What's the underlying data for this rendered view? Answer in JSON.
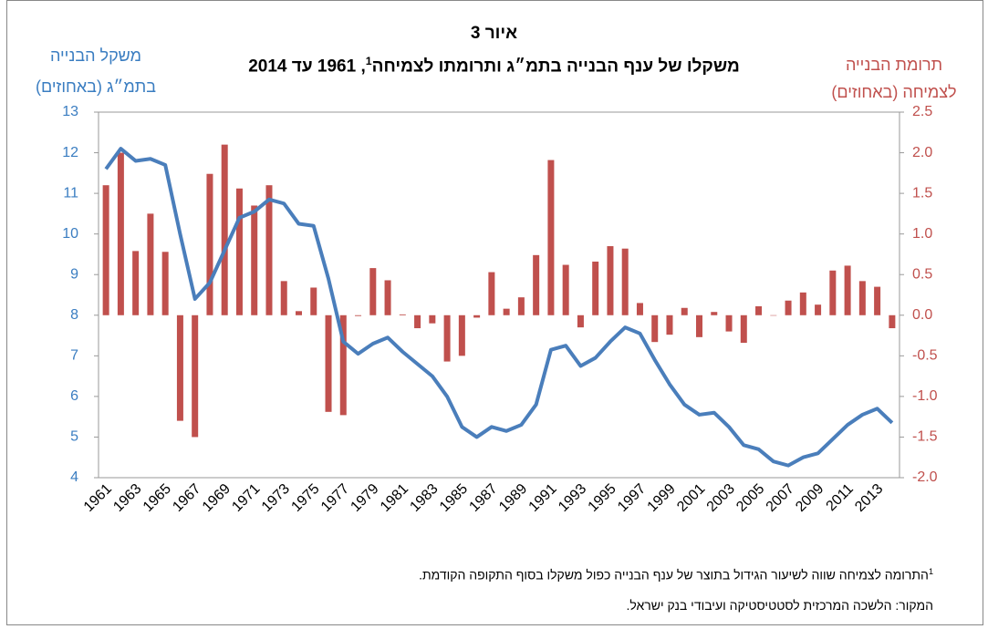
{
  "chart_data": {
    "type": "combo",
    "title_line1": "איור 3",
    "title": [
      "משקלו של ענף הבנייה בתמ״ג ותרומתו לצמיחה",
      "1",
      ", 1961 עד 2014"
    ],
    "ylabel": [
      "משקל הבנייה",
      "בתמ״ג (באחוזים)"
    ],
    "y2label": [
      "תרומת הבנייה",
      "לצמיחה (באחוזים)"
    ],
    "notes": [
      {
        "sup": "1",
        "text": "התרומה לצמיחה שווה לשיעור הגידול בתוצר של ענף הבנייה כפול משקלו בסוף התקופה הקודמת."
      },
      {
        "text": "המקור: הלשכה המרכזית לסטטיסטיקה ועיבודי בנק ישראל."
      }
    ],
    "categories": [
      "1961",
      null,
      "1963",
      null,
      "1965",
      null,
      "1967",
      null,
      "1969",
      null,
      "1971",
      null,
      "1973",
      null,
      "1975",
      null,
      "1977",
      null,
      "1979",
      null,
      "1981",
      null,
      "1983",
      null,
      "1985",
      null,
      "1987",
      null,
      "1989",
      null,
      "1991",
      null,
      "1993",
      null,
      "1995",
      null,
      "1997",
      null,
      "1999",
      null,
      "2001",
      null,
      "2003",
      null,
      "2005",
      null,
      "2007",
      null,
      "2009",
      null,
      "2011",
      null,
      "2013",
      null
    ],
    "series": [
      {
        "type": "bar",
        "axis": "y2",
        "color": "#c0504d",
        "values": [
          1.6,
          2.0,
          0.79,
          1.25,
          0.78,
          -1.3,
          -1.5,
          1.74,
          2.1,
          1.56,
          1.35,
          1.6,
          0.42,
          0.05,
          0.34,
          -1.19,
          -1.23,
          -0.01,
          0.58,
          0.43,
          0.01,
          -0.16,
          -0.1,
          -0.57,
          -0.5,
          -0.03,
          0.53,
          0.08,
          0.22,
          0.74,
          1.91,
          0.62,
          -0.15,
          0.66,
          0.85,
          0.82,
          0.15,
          -0.33,
          -0.24,
          0.09,
          -0.27,
          0.04,
          -0.2,
          -0.34,
          0.11,
          0.0,
          0.18,
          0.28,
          0.13,
          0.55,
          0.61,
          0.42,
          0.35,
          -0.16
        ]
      },
      {
        "type": "line",
        "color": "#4a7ebb",
        "values": [
          11.6,
          12.1,
          11.8,
          11.85,
          11.7,
          10.0,
          8.4,
          8.8,
          9.6,
          10.4,
          10.55,
          10.85,
          10.75,
          10.25,
          10.2,
          8.9,
          7.35,
          7.05,
          7.3,
          7.45,
          7.1,
          6.8,
          6.5,
          6.0,
          5.25,
          5.0,
          5.25,
          5.15,
          5.3,
          5.8,
          7.15,
          7.25,
          6.75,
          6.95,
          7.35,
          7.7,
          7.55,
          6.9,
          6.3,
          5.8,
          5.55,
          5.6,
          5.25,
          4.8,
          4.7,
          4.4,
          4.3,
          4.5,
          4.6,
          4.95,
          5.3,
          5.55,
          5.7,
          5.35
        ]
      }
    ],
    "ylim": [
      4,
      13
    ],
    "yticks": [
      4,
      5,
      6,
      7,
      8,
      9,
      10,
      11,
      12,
      13
    ],
    "y2lim": [
      -2,
      2.5
    ],
    "y2ticks": [
      2.5,
      {
        "value": 2,
        "label": "2.0"
      },
      1.5,
      {
        "value": 1,
        "label": "1.0"
      },
      0.5,
      {
        "value": 0,
        "label": "0.0"
      },
      -0.5,
      {
        "value": -1,
        "label": "-1.0"
      },
      -1.5,
      {
        "value": -2,
        "label": "-2.0"
      }
    ],
    "ycolor": "#3a7dc1",
    "y2color": "#c0504d"
  }
}
